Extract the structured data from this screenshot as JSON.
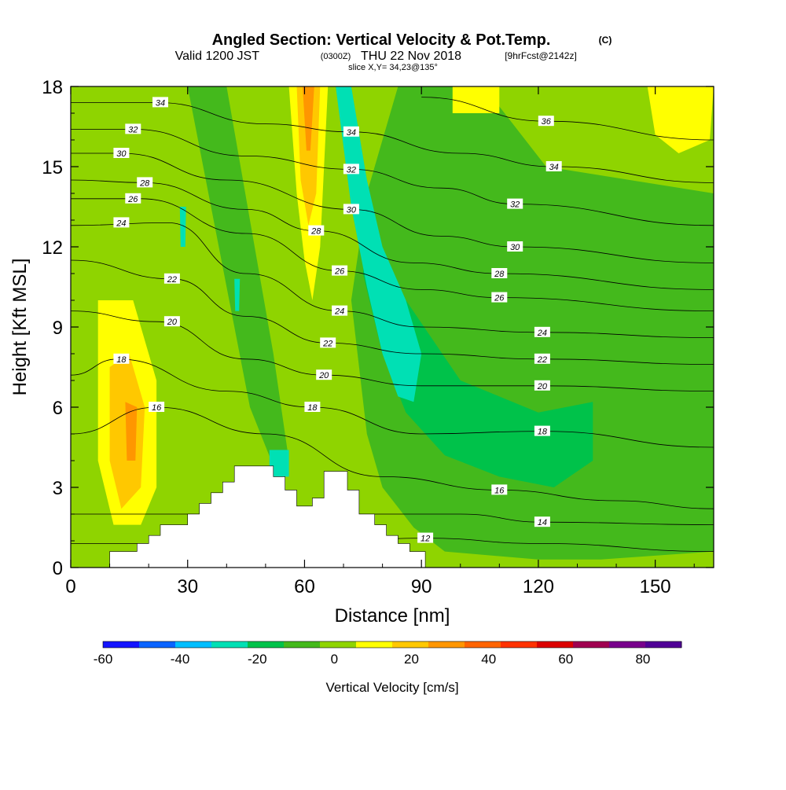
{
  "header": {
    "title": "Angled Section: Vertical Velocity & Pot.Temp.",
    "title_mark": "(C)",
    "valid_prefix": "Valid 1200 JST",
    "valid_utc": "(0300Z)",
    "valid_date": "THU 22 Nov 2018",
    "forecast": "[9hrFcst@2142z]",
    "slice": "slice X,Y= 34,23@135°"
  },
  "chart_data": {
    "type": "contour",
    "xlabel": "Distance [nm]",
    "ylabel": "Height [Kft MSL]",
    "xlim": [
      0,
      165
    ],
    "ylim": [
      0,
      18
    ],
    "x_ticks": [
      0,
      30,
      60,
      90,
      120,
      150
    ],
    "y_ticks": [
      0,
      3,
      6,
      9,
      12,
      15,
      18
    ],
    "terrain": [
      [
        10,
        0.6
      ],
      [
        17,
        0.6
      ],
      [
        17,
        0.9
      ],
      [
        20,
        0.9
      ],
      [
        20,
        1.2
      ],
      [
        23,
        1.2
      ],
      [
        23,
        1.6
      ],
      [
        30,
        1.6
      ],
      [
        30,
        2.0
      ],
      [
        33,
        2.0
      ],
      [
        33,
        2.4
      ],
      [
        36,
        2.4
      ],
      [
        36,
        2.8
      ],
      [
        39,
        2.8
      ],
      [
        39,
        3.2
      ],
      [
        42,
        3.2
      ],
      [
        42,
        3.8
      ],
      [
        52,
        3.8
      ],
      [
        52,
        3.4
      ],
      [
        55,
        3.4
      ],
      [
        55,
        2.9
      ],
      [
        58,
        2.9
      ],
      [
        58,
        2.3
      ],
      [
        62,
        2.3
      ],
      [
        62,
        2.6
      ],
      [
        65,
        2.6
      ],
      [
        65,
        3.6
      ],
      [
        71,
        3.6
      ],
      [
        71,
        2.9
      ],
      [
        74,
        2.9
      ],
      [
        74,
        2.0
      ],
      [
        78,
        2.0
      ],
      [
        78,
        1.6
      ],
      [
        81,
        1.6
      ],
      [
        81,
        1.2
      ],
      [
        84,
        1.2
      ],
      [
        84,
        0.9
      ],
      [
        87,
        0.9
      ],
      [
        87,
        0.6
      ],
      [
        91,
        0.6
      ],
      [
        91,
        0
      ]
    ],
    "velocity_bands": {
      "background": "#8fd400",
      "regions": [
        {
          "color": "#44b91c",
          "pts": [
            [
              84,
              18
            ],
            [
              106,
              18
            ],
            [
              122,
              15
            ],
            [
              165,
              14
            ],
            [
              165,
              0.6
            ],
            [
              136,
              0.3
            ],
            [
              120,
              0.3
            ],
            [
              96,
              0.6
            ],
            [
              88,
              1.5
            ],
            [
              80,
              3
            ],
            [
              76,
              5
            ],
            [
              72,
              10
            ],
            [
              76,
              14
            ]
          ]
        },
        {
          "color": "#00c24a",
          "pts": [
            [
              76,
              13
            ],
            [
              86,
              10
            ],
            [
              100,
              7
            ],
            [
              120,
              5.8
            ],
            [
              134,
              6.2
            ],
            [
              134,
              4
            ],
            [
              124,
              3
            ],
            [
              110,
              3.4
            ],
            [
              96,
              4.2
            ],
            [
              86,
              5.8
            ],
            [
              80,
              8
            ],
            [
              75,
              11
            ]
          ]
        },
        {
          "color": "#00e0b4",
          "pts": [
            [
              68,
              18
            ],
            [
              72,
              18
            ],
            [
              76,
              14.5
            ],
            [
              80,
              12
            ],
            [
              86,
              10
            ],
            [
              90,
              8
            ],
            [
              88,
              6.2
            ],
            [
              84,
              6.4
            ],
            [
              80,
              8
            ],
            [
              76,
              10.5
            ],
            [
              72,
              13.5
            ]
          ]
        },
        {
          "color": "#44b91c",
          "pts": [
            [
              30,
              18
            ],
            [
              40,
              18
            ],
            [
              46,
              13
            ],
            [
              52,
              8
            ],
            [
              56,
              4
            ],
            [
              52,
              3.8
            ],
            [
              46,
              6
            ],
            [
              38,
              12
            ]
          ]
        },
        {
          "color": "#ffff00",
          "pts": [
            [
              56,
              18
            ],
            [
              66,
              18
            ],
            [
              64,
              12
            ],
            [
              62,
              10
            ],
            [
              60,
              11.5
            ],
            [
              58,
              14
            ]
          ]
        },
        {
          "color": "#ffc800",
          "pts": [
            [
              58,
              18
            ],
            [
              64,
              18
            ],
            [
              63,
              14
            ],
            [
              61,
              12.8
            ],
            [
              59,
              14.5
            ]
          ]
        },
        {
          "color": "#ff9600",
          "pts": [
            [
              59.5,
              18
            ],
            [
              62.5,
              18
            ],
            [
              61.5,
              15.6
            ],
            [
              60.5,
              15.6
            ]
          ]
        },
        {
          "color": "#ffff00",
          "pts": [
            [
              7,
              10
            ],
            [
              16,
              10
            ],
            [
              22,
              7
            ],
            [
              22,
              3
            ],
            [
              18,
              1.6
            ],
            [
              11,
              1.6
            ],
            [
              7,
              4
            ]
          ]
        },
        {
          "color": "#ffc800",
          "pts": [
            [
              10,
              7.5
            ],
            [
              15,
              8
            ],
            [
              19,
              6
            ],
            [
              18,
              3
            ],
            [
              13,
              2.2
            ],
            [
              10,
              4
            ]
          ]
        },
        {
          "color": "#ff9600",
          "pts": [
            [
              14,
              6.2
            ],
            [
              17,
              6
            ],
            [
              16.6,
              4
            ],
            [
              14.4,
              4
            ]
          ]
        },
        {
          "color": "#ffff00",
          "pts": [
            [
              98,
              18
            ],
            [
              110,
              18
            ],
            [
              110,
              17
            ],
            [
              98,
              17
            ]
          ]
        },
        {
          "color": "#ffff00",
          "pts": [
            [
              148,
              18
            ],
            [
              165,
              18
            ],
            [
              164,
              16
            ],
            [
              156,
              15.5
            ],
            [
              150,
              16.2
            ]
          ]
        },
        {
          "color": "#00e0b4",
          "pts": [
            [
              28,
              13.5
            ],
            [
              29.6,
              13.5
            ],
            [
              29.4,
              12
            ],
            [
              28.2,
              12
            ]
          ]
        },
        {
          "color": "#00e0b4",
          "pts": [
            [
              42,
              10.8
            ],
            [
              43.4,
              10.8
            ],
            [
              43.2,
              9.6
            ],
            [
              42.2,
              9.6
            ]
          ]
        },
        {
          "color": "#00e0b4",
          "pts": [
            [
              51,
              4.4
            ],
            [
              56,
              4.4
            ],
            [
              56,
              3.4
            ],
            [
              51,
              3.4
            ]
          ]
        }
      ]
    },
    "theta_contours": [
      {
        "level": 12,
        "label_at": [
          91,
          1.1
        ],
        "line": [
          [
            0,
            0.9
          ],
          [
            60,
            0.9
          ],
          [
            91,
            1.1
          ],
          [
            120,
            0.9
          ],
          [
            165,
            0.6
          ]
        ]
      },
      {
        "level": 14,
        "label_at": [
          121,
          1.7
        ],
        "line": [
          [
            0,
            2.0
          ],
          [
            60,
            2.0
          ],
          [
            100,
            2.0
          ],
          [
            121,
            1.7
          ],
          [
            165,
            1.6
          ]
        ]
      },
      {
        "level": 16,
        "label_at": [
          110,
          2.9
        ],
        "line": [
          [
            0,
            5.0
          ],
          [
            22,
            6.0
          ],
          [
            50,
            5.0
          ],
          [
            80,
            3.4
          ],
          [
            110,
            2.9
          ],
          [
            140,
            2.5
          ],
          [
            165,
            2.2
          ]
        ]
      },
      {
        "level": 18,
        "label_at": [
          121,
          5.1
        ],
        "line": [
          [
            0,
            7.2
          ],
          [
            12,
            7.8
          ],
          [
            40,
            6.6
          ],
          [
            62,
            6.0
          ],
          [
            90,
            5.0
          ],
          [
            121,
            5.1
          ],
          [
            165,
            4.5
          ]
        ]
      },
      {
        "level": 20,
        "label_at": [
          121,
          6.8
        ],
        "line": [
          [
            0,
            9.6
          ],
          [
            22,
            9.2
          ],
          [
            45,
            7.8
          ],
          [
            65,
            7.2
          ],
          [
            90,
            6.8
          ],
          [
            121,
            6.8
          ],
          [
            165,
            6.6
          ]
        ]
      },
      {
        "level": 22,
        "label_at": [
          121,
          7.8
        ],
        "line": [
          [
            0,
            11.5
          ],
          [
            26,
            10.8
          ],
          [
            45,
            9.4
          ],
          [
            66,
            8.4
          ],
          [
            90,
            8.0
          ],
          [
            121,
            7.8
          ],
          [
            165,
            7.6
          ]
        ]
      },
      {
        "level": 24,
        "label_at": [
          121,
          8.8
        ],
        "line": [
          [
            0,
            12.8
          ],
          [
            25,
            12.9
          ],
          [
            45,
            11.0
          ],
          [
            69,
            9.6
          ],
          [
            90,
            9.0
          ],
          [
            121,
            8.8
          ],
          [
            165,
            8.6
          ]
        ]
      },
      {
        "level": 26,
        "label_at": [
          110,
          10.1
        ],
        "line": [
          [
            0,
            13.8
          ],
          [
            18,
            13.8
          ],
          [
            45,
            12.5
          ],
          [
            69,
            11.1
          ],
          [
            90,
            10.4
          ],
          [
            110,
            10.1
          ],
          [
            165,
            9.6
          ]
        ]
      },
      {
        "level": 28,
        "label_at": [
          110,
          11.0
        ],
        "line": [
          [
            0,
            14.5
          ],
          [
            19,
            14.4
          ],
          [
            45,
            13.4
          ],
          [
            63,
            12.6
          ],
          [
            88,
            11.4
          ],
          [
            110,
            11.0
          ],
          [
            165,
            10.4
          ]
        ]
      },
      {
        "level": 30,
        "label_at": [
          114,
          12.0
        ],
        "line": [
          [
            0,
            15.5
          ],
          [
            13,
            15.5
          ],
          [
            40,
            14.5
          ],
          [
            72,
            13.4
          ],
          [
            95,
            12.4
          ],
          [
            114,
            12.0
          ],
          [
            165,
            11.4
          ]
        ]
      },
      {
        "level": 32,
        "label_at": [
          114,
          13.6
        ],
        "line": [
          [
            0,
            16.4
          ],
          [
            16,
            16.4
          ],
          [
            45,
            15.4
          ],
          [
            72,
            14.9
          ],
          [
            95,
            14.2
          ],
          [
            114,
            13.6
          ],
          [
            165,
            12.8
          ]
        ]
      },
      {
        "level": 34,
        "label_at": [
          124,
          15.0
        ],
        "line": [
          [
            0,
            17.4
          ],
          [
            22,
            17.4
          ],
          [
            50,
            16.6
          ],
          [
            72,
            16.3
          ],
          [
            100,
            15.5
          ],
          [
            124,
            15.0
          ],
          [
            165,
            14.4
          ]
        ]
      },
      {
        "level": 36,
        "label_at": [
          122,
          16.7
        ],
        "line": [
          [
            90,
            17.6
          ],
          [
            122,
            16.7
          ],
          [
            165,
            16.0
          ]
        ]
      }
    ],
    "extra_labels": [
      {
        "text": "34",
        "at": [
          23,
          17.4
        ]
      },
      {
        "text": "32",
        "at": [
          16,
          16.4
        ]
      },
      {
        "text": "30",
        "at": [
          13,
          15.5
        ]
      },
      {
        "text": "28",
        "at": [
          19,
          14.4
        ]
      },
      {
        "text": "26",
        "at": [
          16,
          13.8
        ]
      },
      {
        "text": "24",
        "at": [
          13,
          12.9
        ]
      },
      {
        "text": "22",
        "at": [
          26,
          10.8
        ]
      },
      {
        "text": "20",
        "at": [
          26,
          9.2
        ]
      },
      {
        "text": "18",
        "at": [
          13,
          7.8
        ]
      },
      {
        "text": "16",
        "at": [
          22,
          6.0
        ]
      },
      {
        "text": "34",
        "at": [
          72,
          16.3
        ]
      },
      {
        "text": "32",
        "at": [
          72,
          14.9
        ]
      },
      {
        "text": "30",
        "at": [
          72,
          13.4
        ]
      },
      {
        "text": "28",
        "at": [
          63,
          12.6
        ]
      },
      {
        "text": "26",
        "at": [
          69,
          11.1
        ]
      },
      {
        "text": "24",
        "at": [
          69,
          9.6
        ]
      },
      {
        "text": "22",
        "at": [
          66,
          8.4
        ]
      },
      {
        "text": "20",
        "at": [
          65,
          7.2
        ]
      },
      {
        "text": "18",
        "at": [
          62,
          6.0
        ]
      }
    ],
    "colorbar": {
      "label": "Vertical Velocity [cm/s]",
      "tick_labels": [
        "-60",
        "-40",
        "-20",
        "0",
        "20",
        "40",
        "60",
        "80"
      ],
      "colors": [
        "#1414ff",
        "#0a64ff",
        "#00beff",
        "#00e0b4",
        "#00c24a",
        "#44b91c",
        "#8fd400",
        "#ffff00",
        "#ffc800",
        "#ff9600",
        "#ff6400",
        "#ff3200",
        "#dc0000",
        "#a00050",
        "#78008c",
        "#500096"
      ]
    }
  }
}
